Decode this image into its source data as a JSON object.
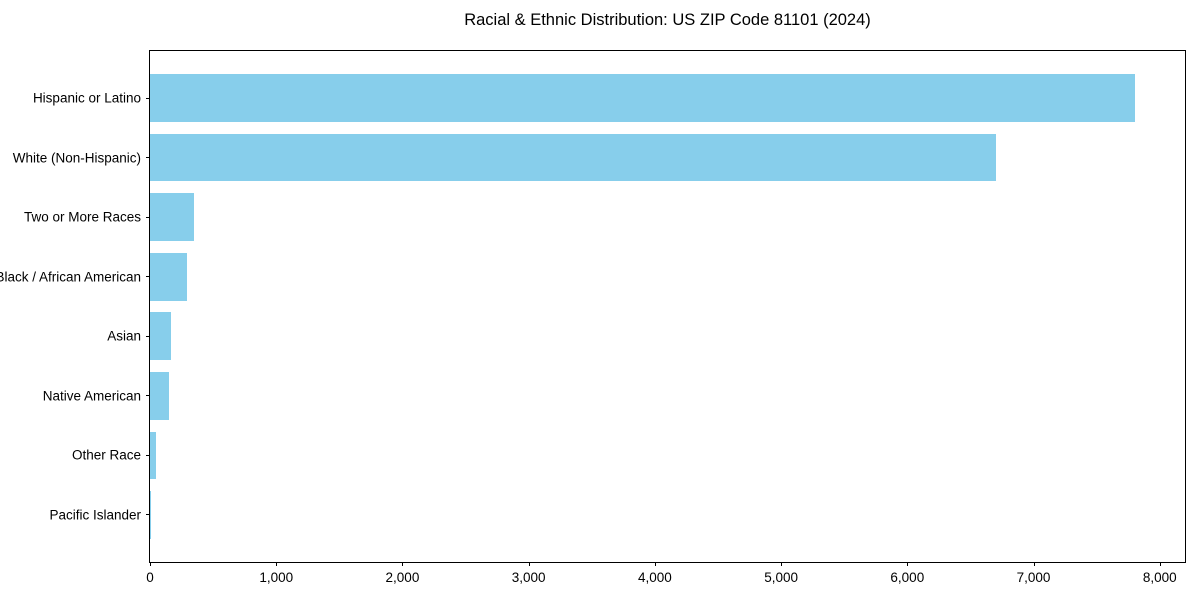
{
  "chart_data": {
    "type": "bar",
    "orientation": "horizontal",
    "title": "Racial & Ethnic Distribution: US ZIP Code 81101 (2024)",
    "categories": [
      "Hispanic or Latino",
      "White (Non-Hispanic)",
      "Two or More Races",
      "Black / African American",
      "Asian",
      "Native American",
      "Other Race",
      "Pacific Islander"
    ],
    "values": [
      7800,
      6700,
      350,
      290,
      170,
      150,
      45,
      5
    ],
    "xlabel": "",
    "ylabel": "",
    "xlim": [
      0,
      8200
    ],
    "xticks": [
      0,
      1000,
      2000,
      3000,
      4000,
      5000,
      6000,
      7000,
      8000
    ],
    "xtick_labels": [
      "0",
      "1,000",
      "2,000",
      "3,000",
      "4,000",
      "5,000",
      "6,000",
      "7,000",
      "8,000"
    ],
    "bar_color": "#87CEEB",
    "grid": false,
    "legend_position": "none"
  }
}
